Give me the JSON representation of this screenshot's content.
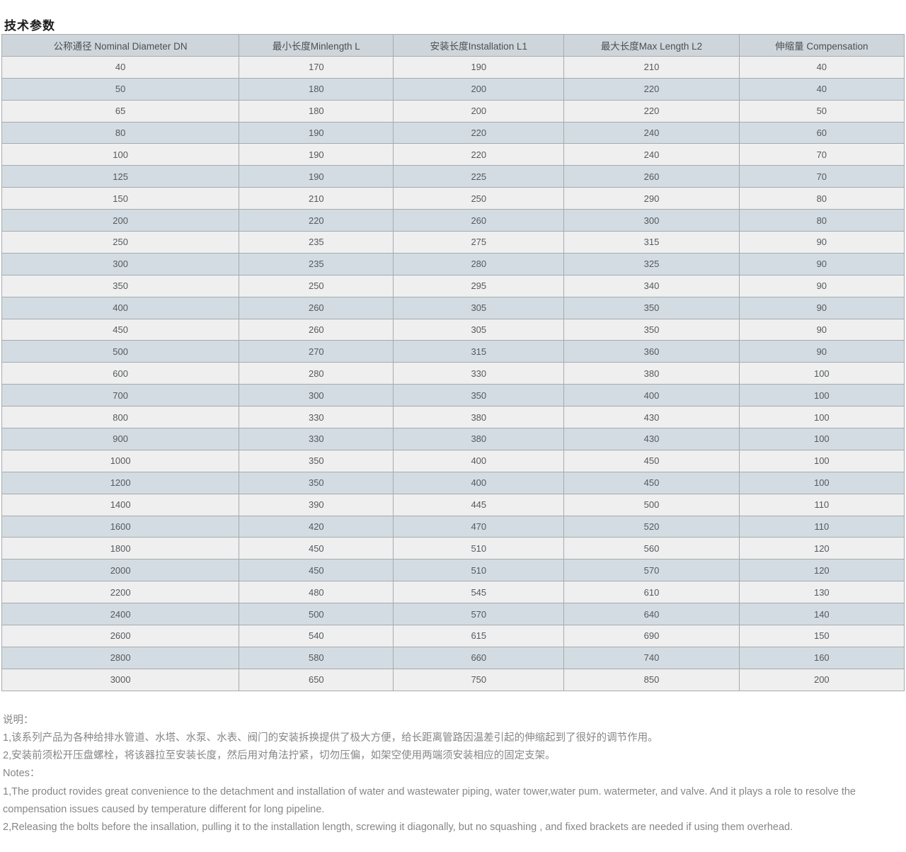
{
  "page": {
    "title": "技术参数"
  },
  "table": {
    "columns": [
      "公称通径 Nominal Diameter DN",
      "最小长度Minlength L",
      "安装长度Installation L1",
      "最大长度Max Length L2",
      "伸缩量 Compensation"
    ],
    "rows": [
      [
        "40",
        "170",
        "190",
        "210",
        "40"
      ],
      [
        "50",
        "180",
        "200",
        "220",
        "40"
      ],
      [
        "65",
        "180",
        "200",
        "220",
        "50"
      ],
      [
        "80",
        "190",
        "220",
        "240",
        "60"
      ],
      [
        "100",
        "190",
        "220",
        "240",
        "70"
      ],
      [
        "125",
        "190",
        "225",
        "260",
        "70"
      ],
      [
        "150",
        "210",
        "250",
        "290",
        "80"
      ],
      [
        "200",
        "220",
        "260",
        "300",
        "80"
      ],
      [
        "250",
        "235",
        "275",
        "315",
        "90"
      ],
      [
        "300",
        "235",
        "280",
        "325",
        "90"
      ],
      [
        "350",
        "250",
        "295",
        "340",
        "90"
      ],
      [
        "400",
        "260",
        "305",
        "350",
        "90"
      ],
      [
        "450",
        "260",
        "305",
        "350",
        "90"
      ],
      [
        "500",
        "270",
        "315",
        "360",
        "90"
      ],
      [
        "600",
        "280",
        "330",
        "380",
        "100"
      ],
      [
        "700",
        "300",
        "350",
        "400",
        "100"
      ],
      [
        "800",
        "330",
        "380",
        "430",
        "100"
      ],
      [
        "900",
        "330",
        "380",
        "430",
        "100"
      ],
      [
        "1000",
        "350",
        "400",
        "450",
        "100"
      ],
      [
        "1200",
        "350",
        "400",
        "450",
        "100"
      ],
      [
        "1400",
        "390",
        "445",
        "500",
        "110"
      ],
      [
        "1600",
        "420",
        "470",
        "520",
        "110"
      ],
      [
        "1800",
        "450",
        "510",
        "560",
        "120"
      ],
      [
        "2000",
        "450",
        "510",
        "570",
        "120"
      ],
      [
        "2200",
        "480",
        "545",
        "610",
        "130"
      ],
      [
        "2400",
        "500",
        "570",
        "640",
        "140"
      ],
      [
        "2600",
        "540",
        "615",
        "690",
        "150"
      ],
      [
        "2800",
        "580",
        "660",
        "740",
        "160"
      ],
      [
        "3000",
        "650",
        "750",
        "850",
        "200"
      ]
    ]
  },
  "notes": {
    "zh_heading": "说明：",
    "zh_items": [
      "1,该系列产品为各种给排水管道、水塔、水泵、水表、阀门的安装拆换提供了极大方便，给长距离管路因温差引起的伸缩起到了很好的调节作用。",
      "2,安装前须松开压盘螺栓，将该器拉至安装长度，然后用对角法拧紧，切勿压偏，如架空使用两端须安装相应的固定支架。"
    ],
    "en_heading": "Notes：",
    "en_items": [
      "1,The product rovides great convenience to the detachment and installation of water and wastewater piping, water tower,water pum. watermeter, and valve. And it plays a role to resolve the compensation issues caused by temperature different for long pipeline.",
      "2,Releasing the bolts before the insallation, pulling it to the installation length, screwing it diagonally, but no squashing , and fixed brackets are needed if using them overhead."
    ]
  },
  "colors": {
    "header_bg": "#ced6dc",
    "row_odd_bg": "#efefef",
    "row_even_bg": "#d3dce3",
    "border": "#a6abae",
    "cell_text": "#56595c",
    "notes_text": "#868686",
    "title_text": "#1c1c1c"
  }
}
